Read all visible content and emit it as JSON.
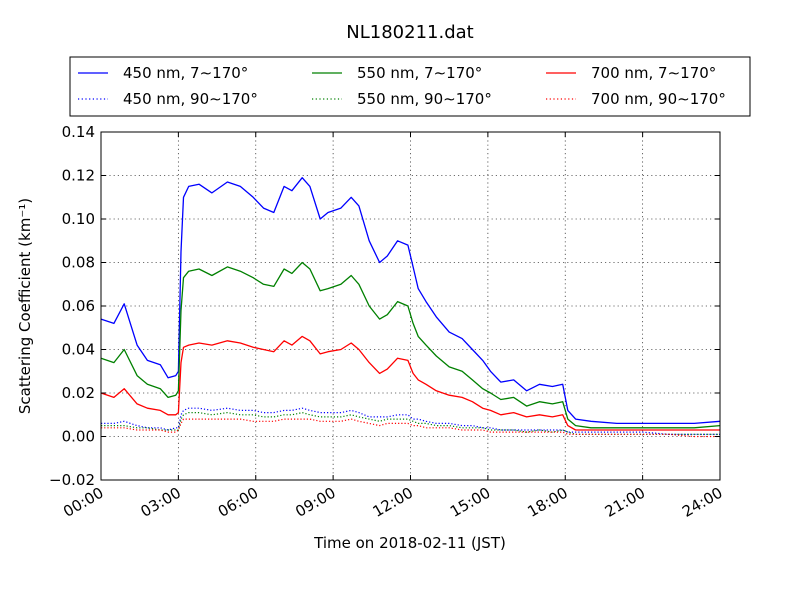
{
  "chart_data": {
    "type": "line",
    "title": "NL180211.dat",
    "xlabel": "Time on 2018-02-11 (JST)",
    "ylabel": "Scattering Coefficient (km⁻¹)",
    "xlim": [
      0,
      24
    ],
    "ylim": [
      -0.02,
      0.14
    ],
    "xticks": [
      0,
      3,
      6,
      9,
      12,
      15,
      18,
      21,
      24
    ],
    "xtick_labels": [
      "00:00",
      "03:00",
      "06:00",
      "09:00",
      "12:00",
      "15:00",
      "18:00",
      "21:00",
      "24:00"
    ],
    "yticks": [
      -0.02,
      0.0,
      0.02,
      0.04,
      0.06,
      0.08,
      0.1,
      0.12,
      0.14
    ],
    "ytick_labels": [
      "−0.02",
      "0.00",
      "0.02",
      "0.04",
      "0.06",
      "0.08",
      "0.10",
      "0.12",
      "0.14"
    ],
    "grid": true,
    "legend_position": "top",
    "x": [
      0,
      0.5,
      0.9,
      1.4,
      1.8,
      2.3,
      2.6,
      2.9,
      3.0,
      3.1,
      3.2,
      3.4,
      3.8,
      4.3,
      4.9,
      5.4,
      5.9,
      6.3,
      6.7,
      7.1,
      7.4,
      7.8,
      8.1,
      8.5,
      8.8,
      9.3,
      9.7,
      10.0,
      10.4,
      10.8,
      11.1,
      11.5,
      11.9,
      12.1,
      12.3,
      12.6,
      13.0,
      13.5,
      14.0,
      14.4,
      14.8,
      15.1,
      15.5,
      16.0,
      16.5,
      17.0,
      17.5,
      17.9,
      18.1,
      18.4,
      19.0,
      20.0,
      21.0,
      22.0,
      23.0,
      24.0
    ],
    "series": [
      {
        "name": "450 nm, 7∼170°",
        "color": "#0000ff",
        "style": "solid",
        "values": [
          0.054,
          0.052,
          0.061,
          0.042,
          0.035,
          0.033,
          0.027,
          0.028,
          0.03,
          0.085,
          0.11,
          0.115,
          0.116,
          0.112,
          0.117,
          0.115,
          0.11,
          0.105,
          0.103,
          0.115,
          0.113,
          0.119,
          0.115,
          0.1,
          0.103,
          0.105,
          0.11,
          0.106,
          0.09,
          0.08,
          0.083,
          0.09,
          0.088,
          0.078,
          0.068,
          0.062,
          0.055,
          0.048,
          0.045,
          0.04,
          0.035,
          0.03,
          0.025,
          0.026,
          0.021,
          0.024,
          0.023,
          0.024,
          0.012,
          0.008,
          0.007,
          0.006,
          0.006,
          0.006,
          0.006,
          0.007
        ]
      },
      {
        "name": "550 nm, 7∼170°",
        "color": "#008000",
        "style": "solid",
        "values": [
          0.036,
          0.034,
          0.04,
          0.028,
          0.024,
          0.022,
          0.018,
          0.019,
          0.021,
          0.058,
          0.073,
          0.076,
          0.077,
          0.074,
          0.078,
          0.076,
          0.073,
          0.07,
          0.069,
          0.077,
          0.075,
          0.08,
          0.077,
          0.067,
          0.068,
          0.07,
          0.074,
          0.07,
          0.06,
          0.054,
          0.056,
          0.062,
          0.06,
          0.052,
          0.046,
          0.042,
          0.037,
          0.032,
          0.03,
          0.026,
          0.022,
          0.02,
          0.017,
          0.018,
          0.014,
          0.016,
          0.015,
          0.016,
          0.008,
          0.005,
          0.004,
          0.004,
          0.004,
          0.004,
          0.004,
          0.005
        ]
      },
      {
        "name": "700 nm, 7∼170°",
        "color": "#ff0000",
        "style": "solid",
        "values": [
          0.02,
          0.018,
          0.022,
          0.015,
          0.013,
          0.012,
          0.01,
          0.01,
          0.011,
          0.034,
          0.041,
          0.042,
          0.043,
          0.042,
          0.044,
          0.043,
          0.041,
          0.04,
          0.039,
          0.044,
          0.042,
          0.046,
          0.044,
          0.038,
          0.039,
          0.04,
          0.043,
          0.04,
          0.034,
          0.029,
          0.031,
          0.036,
          0.035,
          0.029,
          0.026,
          0.024,
          0.021,
          0.019,
          0.018,
          0.016,
          0.013,
          0.012,
          0.01,
          0.011,
          0.009,
          0.01,
          0.009,
          0.01,
          0.005,
          0.003,
          0.003,
          0.003,
          0.003,
          0.003,
          0.003,
          0.003
        ]
      },
      {
        "name": "450 nm, 90∼170°",
        "color": "#0000ff",
        "style": "dotted",
        "values": [
          0.006,
          0.006,
          0.007,
          0.005,
          0.004,
          0.004,
          0.003,
          0.004,
          0.004,
          0.01,
          0.012,
          0.013,
          0.013,
          0.012,
          0.013,
          0.012,
          0.012,
          0.011,
          0.011,
          0.012,
          0.012,
          0.013,
          0.012,
          0.011,
          0.011,
          0.011,
          0.012,
          0.011,
          0.009,
          0.009,
          0.009,
          0.01,
          0.01,
          0.008,
          0.008,
          0.007,
          0.006,
          0.006,
          0.005,
          0.005,
          0.004,
          0.004,
          0.003,
          0.003,
          0.003,
          0.003,
          0.003,
          0.003,
          0.002,
          0.002,
          0.002,
          0.002,
          0.002,
          0.001,
          0.001,
          0.001
        ]
      },
      {
        "name": "550 nm, 90∼170°",
        "color": "#008000",
        "style": "dotted",
        "values": [
          0.005,
          0.005,
          0.005,
          0.004,
          0.004,
          0.003,
          0.003,
          0.003,
          0.003,
          0.008,
          0.01,
          0.011,
          0.011,
          0.01,
          0.011,
          0.01,
          0.01,
          0.009,
          0.009,
          0.01,
          0.01,
          0.011,
          0.01,
          0.009,
          0.009,
          0.009,
          0.01,
          0.009,
          0.008,
          0.007,
          0.008,
          0.008,
          0.008,
          0.007,
          0.006,
          0.006,
          0.005,
          0.005,
          0.004,
          0.004,
          0.004,
          0.003,
          0.003,
          0.003,
          0.002,
          0.003,
          0.002,
          0.003,
          0.002,
          0.001,
          0.001,
          0.001,
          0.001,
          0.001,
          0.001,
          0.001
        ]
      },
      {
        "name": "700 nm, 90∼170°",
        "color": "#ff0000",
        "style": "dotted",
        "values": [
          0.004,
          0.004,
          0.004,
          0.003,
          0.003,
          0.003,
          0.002,
          0.002,
          0.003,
          0.006,
          0.008,
          0.008,
          0.008,
          0.008,
          0.008,
          0.008,
          0.007,
          0.007,
          0.007,
          0.008,
          0.008,
          0.008,
          0.008,
          0.007,
          0.007,
          0.007,
          0.008,
          0.007,
          0.006,
          0.005,
          0.006,
          0.006,
          0.006,
          0.005,
          0.005,
          0.004,
          0.004,
          0.004,
          0.003,
          0.003,
          0.003,
          0.002,
          0.002,
          0.002,
          0.002,
          0.002,
          0.002,
          0.002,
          0.001,
          0.001,
          0.001,
          0.001,
          0.001,
          0.001,
          0.0,
          0.0
        ]
      }
    ]
  }
}
